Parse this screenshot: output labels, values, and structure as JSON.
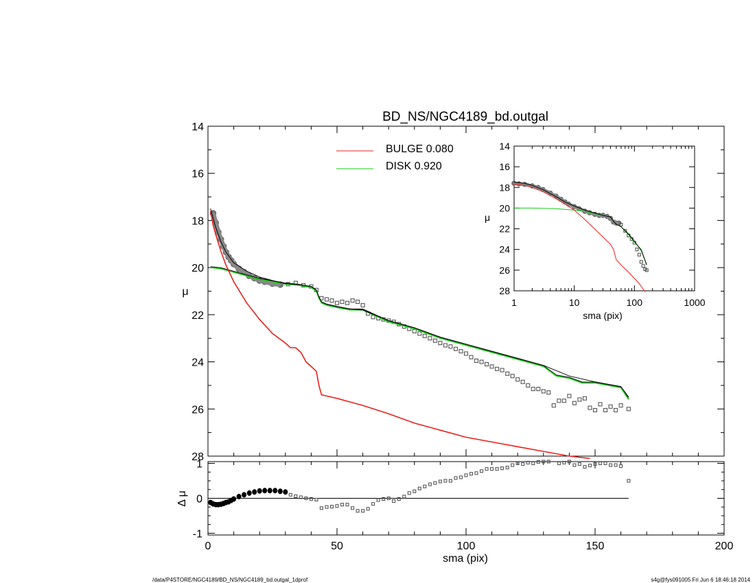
{
  "title": "BD_NS/NGC4189_bd.outgal",
  "footer_left": "/data/P4STORE/NGC4189/BD_NS/NGC4189_bd.outgal_1dprof",
  "footer_right": "s4g@fys091005  Fri Jun  6 18:46:18 2014",
  "colors": {
    "bulge": "#e8201c",
    "disk": "#18c818",
    "model": "#000000",
    "data": "#555555"
  },
  "legend": [
    {
      "label": "BULGE  0.080",
      "color": "#e8201c"
    },
    {
      "label": "DISK  0.920",
      "color": "#18c818"
    }
  ],
  "chart_data": [
    {
      "panel": "main",
      "type": "line",
      "xlabel": "",
      "ylabel": "μ",
      "xlim": [
        0,
        200
      ],
      "ylim": [
        14,
        28
      ],
      "y_inverted": true,
      "yticks": [
        "14",
        "16",
        "18",
        "20",
        "22",
        "24",
        "26",
        "28"
      ],
      "series": [
        {
          "name": "BULGE",
          "x": [
            1,
            2,
            3,
            5,
            7,
            10,
            15,
            20,
            25,
            30,
            32,
            34,
            36,
            38,
            40,
            42,
            43,
            44,
            46,
            50,
            55,
            60,
            70,
            80,
            90,
            100,
            110,
            120,
            130,
            140,
            148
          ],
          "y": [
            17.6,
            18.2,
            18.6,
            19.3,
            19.9,
            20.6,
            21.5,
            22.2,
            22.8,
            23.2,
            23.4,
            23.4,
            23.6,
            24.0,
            24.2,
            24.4,
            25.0,
            25.4,
            25.45,
            25.55,
            25.7,
            25.85,
            26.2,
            26.6,
            26.9,
            27.2,
            27.4,
            27.6,
            27.8,
            28.0,
            28.1
          ]
        },
        {
          "name": "DISK",
          "x": [
            1,
            5,
            10,
            15,
            20,
            25,
            30,
            35,
            40,
            42,
            43,
            44,
            46,
            50,
            55,
            60,
            70,
            80,
            90,
            100,
            110,
            120,
            130,
            135,
            140,
            145,
            150,
            155,
            160,
            163
          ],
          "y": [
            20.0,
            20.05,
            20.2,
            20.35,
            20.5,
            20.6,
            20.7,
            20.75,
            20.85,
            21.0,
            21.3,
            21.5,
            21.6,
            21.7,
            21.8,
            21.8,
            22.3,
            22.6,
            23.0,
            23.3,
            23.6,
            23.9,
            24.2,
            24.6,
            24.7,
            24.9,
            24.9,
            25.0,
            25.1,
            25.6
          ]
        },
        {
          "name": "model",
          "x": [
            1,
            2,
            3,
            5,
            7,
            10,
            15,
            20,
            25,
            30,
            35,
            40,
            42,
            43,
            44,
            46,
            50,
            55,
            60,
            70,
            80,
            90,
            100,
            110,
            120,
            130,
            140,
            150,
            160,
            163
          ],
          "y": [
            17.5,
            17.9,
            18.3,
            18.9,
            19.35,
            19.8,
            20.15,
            20.4,
            20.55,
            20.68,
            20.72,
            20.8,
            20.95,
            21.25,
            21.45,
            21.55,
            21.65,
            21.75,
            21.8,
            22.25,
            22.55,
            22.95,
            23.25,
            23.55,
            23.85,
            24.15,
            24.6,
            24.85,
            25.05,
            25.5
          ]
        },
        {
          "name": "data",
          "x": [
            2,
            3,
            4,
            5,
            6,
            7,
            8,
            9,
            10,
            12,
            14,
            16,
            18,
            20,
            22,
            25,
            28,
            31,
            34,
            37,
            40,
            42,
            44,
            46,
            48,
            50,
            52,
            54,
            56,
            58,
            60,
            62,
            64,
            66,
            68,
            70,
            72,
            74,
            76,
            78,
            80,
            82,
            84,
            86,
            88,
            90,
            92,
            94,
            96,
            98,
            100,
            102,
            104,
            106,
            108,
            110,
            112,
            114,
            116,
            118,
            120,
            122,
            124,
            126,
            128,
            130,
            132,
            134,
            136,
            138,
            140,
            142,
            144,
            146,
            148,
            150,
            152,
            154,
            156,
            158,
            160,
            163
          ],
          "y": [
            17.7,
            18.1,
            18.5,
            18.8,
            19.1,
            19.35,
            19.55,
            19.7,
            19.85,
            20.05,
            20.2,
            20.35,
            20.45,
            20.55,
            20.6,
            20.68,
            20.72,
            20.7,
            20.65,
            20.75,
            20.8,
            20.95,
            21.3,
            21.35,
            21.4,
            21.5,
            21.45,
            21.5,
            21.4,
            21.45,
            21.6,
            21.95,
            22.1,
            22.15,
            22.2,
            22.25,
            22.3,
            22.4,
            22.5,
            22.6,
            22.7,
            22.8,
            22.9,
            23.0,
            23.1,
            23.2,
            23.3,
            23.35,
            23.45,
            23.55,
            23.65,
            23.8,
            23.95,
            24.0,
            24.1,
            24.2,
            24.3,
            24.35,
            24.5,
            24.6,
            24.75,
            24.85,
            25.0,
            25.15,
            25.15,
            25.25,
            25.3,
            25.85,
            25.65,
            25.65,
            25.45,
            25.75,
            25.6,
            25.55,
            25.95,
            26.05,
            25.8,
            26.05,
            25.9,
            26.05,
            25.85,
            26.0
          ]
        }
      ]
    },
    {
      "panel": "residual",
      "type": "scatter",
      "xlabel": "sma (pix)",
      "ylabel": "Δ μ",
      "xlim": [
        0,
        200
      ],
      "ylim": [
        -1.05,
        1.05
      ],
      "xticks": [
        "0",
        "50",
        "100",
        "150",
        "200"
      ],
      "yticks": [
        "1",
        "0",
        "-1"
      ],
      "series": [
        {
          "name": "residual",
          "x": [
            1,
            2,
            3,
            4,
            5,
            6,
            7,
            8,
            9,
            10,
            12,
            14,
            16,
            18,
            20,
            22,
            24,
            26,
            28,
            30,
            32,
            34,
            36,
            38,
            40,
            42,
            44,
            46,
            48,
            50,
            52,
            54,
            56,
            58,
            60,
            62,
            64,
            66,
            68,
            70,
            72,
            74,
            76,
            78,
            80,
            82,
            84,
            86,
            88,
            90,
            92,
            94,
            96,
            98,
            100,
            102,
            104,
            106,
            108,
            110,
            112,
            114,
            116,
            118,
            120,
            122,
            124,
            126,
            128,
            130,
            132,
            134,
            136,
            138,
            140,
            142,
            144,
            146,
            148,
            150,
            152,
            154,
            156,
            158,
            160,
            163
          ],
          "y": [
            -0.12,
            -0.16,
            -0.18,
            -0.18,
            -0.17,
            -0.15,
            -0.12,
            -0.1,
            -0.06,
            -0.02,
            0.05,
            0.1,
            0.15,
            0.18,
            0.21,
            0.22,
            0.22,
            0.22,
            0.2,
            0.18,
            0.1,
            0.06,
            0.03,
            0.0,
            -0.02,
            -0.04,
            -0.28,
            -0.25,
            -0.24,
            -0.22,
            -0.18,
            -0.18,
            -0.28,
            -0.36,
            -0.36,
            -0.3,
            -0.16,
            -0.05,
            -0.02,
            0.0,
            -0.08,
            -0.02,
            0.05,
            0.15,
            0.2,
            0.28,
            0.34,
            0.4,
            0.44,
            0.48,
            0.5,
            0.5,
            0.58,
            0.6,
            0.66,
            0.7,
            0.72,
            0.78,
            0.84,
            0.84,
            0.84,
            0.86,
            0.88,
            0.95,
            1.0,
            0.98,
            1.02,
            1.0,
            1.04,
            1.05,
            1.05,
            1.06,
            1.0,
            1.02,
            1.05,
            0.95,
            0.98,
            0.9,
            0.94,
            0.98,
            1.0,
            1.0,
            0.95,
            0.95,
            0.92,
            0.5
          ]
        }
      ]
    },
    {
      "panel": "inset",
      "type": "line",
      "xlabel": "sma (pix)",
      "ylabel": "μ",
      "x_scale": "log",
      "xlim": [
        1,
        1000
      ],
      "ylim": [
        14,
        28
      ],
      "y_inverted": true,
      "xticks": [
        "1",
        "10",
        "100",
        "1000"
      ],
      "yticks": [
        "14",
        "16",
        "18",
        "20",
        "22",
        "24",
        "26",
        "28"
      ],
      "series": [
        {
          "name": "BULGE",
          "x": [
            1,
            1.5,
            2,
            3,
            5,
            7,
            10,
            15,
            20,
            30,
            40,
            45,
            50,
            60,
            80,
            100,
            120,
            150
          ],
          "y": [
            17.7,
            17.8,
            18.0,
            18.4,
            19.1,
            19.6,
            20.2,
            21.1,
            21.8,
            22.8,
            23.5,
            24.0,
            25.0,
            25.5,
            26.2,
            26.8,
            27.3,
            28.1
          ]
        },
        {
          "name": "DISK",
          "x": [
            1,
            2,
            5,
            10,
            15,
            20,
            30,
            40,
            45,
            50,
            60,
            80,
            100,
            130,
            160
          ],
          "y": [
            20.0,
            20.0,
            20.05,
            20.2,
            20.3,
            20.5,
            20.7,
            20.85,
            21.3,
            21.55,
            21.8,
            22.6,
            23.3,
            24.0,
            25.5
          ]
        },
        {
          "name": "model",
          "x": [
            1,
            1.5,
            2,
            3,
            5,
            7,
            10,
            15,
            20,
            30,
            40,
            45,
            50,
            60,
            80,
            100,
            130,
            160
          ],
          "y": [
            17.5,
            17.6,
            17.8,
            18.2,
            18.9,
            19.4,
            19.8,
            20.2,
            20.4,
            20.7,
            20.85,
            21.3,
            21.55,
            21.8,
            22.5,
            23.2,
            24.1,
            25.5
          ]
        },
        {
          "name": "data",
          "x": [
            1,
            1.2,
            1.5,
            2,
            2.5,
            3,
            4,
            5,
            6,
            7,
            8,
            10,
            12,
            15,
            18,
            22,
            26,
            30,
            35,
            40,
            45,
            50,
            55,
            60,
            70,
            80,
            90,
            100,
            110,
            120,
            130,
            140,
            150,
            160
          ],
          "y": [
            17.6,
            17.65,
            17.7,
            17.85,
            18.0,
            18.2,
            18.55,
            18.85,
            19.15,
            19.4,
            19.6,
            19.85,
            20.05,
            20.3,
            20.45,
            20.6,
            20.7,
            20.7,
            20.8,
            21.0,
            21.35,
            21.45,
            21.45,
            21.6,
            22.2,
            22.65,
            23.0,
            23.35,
            24.0,
            24.5,
            25.2,
            25.6,
            25.9,
            26.0
          ]
        }
      ]
    }
  ]
}
